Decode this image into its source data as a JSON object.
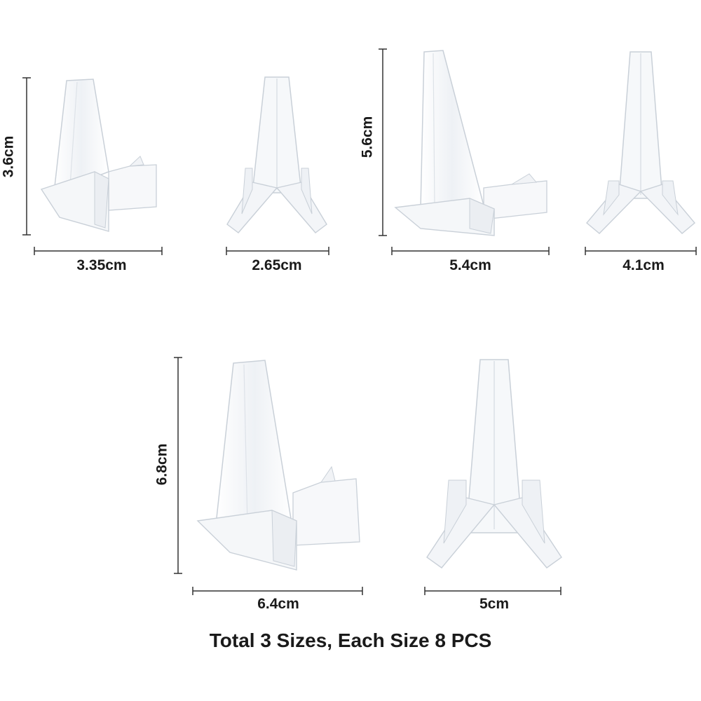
{
  "dimensions": {
    "small_side_height": "3.6cm",
    "small_side_width": "3.35cm",
    "small_front_width": "2.65cm",
    "medium_side_height": "5.6cm",
    "medium_side_width": "5.4cm",
    "medium_front_width": "4.1cm",
    "large_side_height": "6.8cm",
    "large_side_width": "6.4cm",
    "large_front_width": "5cm"
  },
  "caption": "Total 3 Sizes, Each Size 8 PCS",
  "colors": {
    "background": "#ffffff",
    "text": "#1a1a1a",
    "dimension_line": "#333333",
    "acrylic_edge": "#c9d0d8",
    "acrylic_fill": "#f3f5f8"
  }
}
